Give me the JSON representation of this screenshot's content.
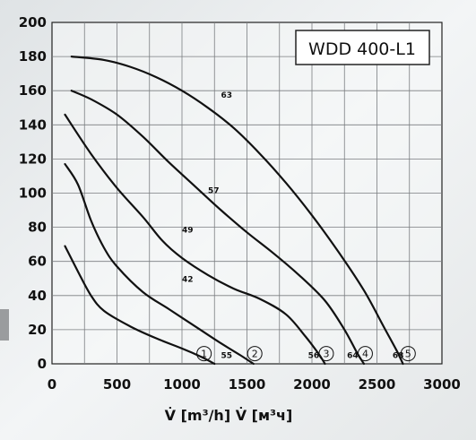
{
  "chart_data": {
    "type": "line",
    "title": "WDD 400-L1",
    "xlabel": "V̇ [m³/h]  V̇ [м³ч]",
    "ylabel": "",
    "xlim": [
      0,
      3000
    ],
    "ylim": [
      0,
      200
    ],
    "xticks": [
      "0",
      "500",
      "1000",
      "1500",
      "2000",
      "2500",
      "3000"
    ],
    "yticks": [
      "0",
      "20",
      "40",
      "60",
      "80",
      "100",
      "120",
      "140",
      "160",
      "180",
      "200"
    ],
    "grid": true,
    "series": [
      {
        "name": "1",
        "mid_label": "42",
        "end_label": "55",
        "points": [
          [
            100,
            69
          ],
          [
            200,
            54
          ],
          [
            300,
            40
          ],
          [
            400,
            31
          ],
          [
            600,
            22
          ],
          [
            800,
            15
          ],
          [
            1000,
            9
          ],
          [
            1150,
            4
          ],
          [
            1250,
            0
          ]
        ]
      },
      {
        "name": "2",
        "mid_label": "",
        "end_label": "",
        "points": [
          [
            100,
            117
          ],
          [
            200,
            105
          ],
          [
            300,
            84
          ],
          [
            400,
            68
          ],
          [
            500,
            57
          ],
          [
            700,
            42
          ],
          [
            900,
            32
          ],
          [
            1100,
            22
          ],
          [
            1300,
            12
          ],
          [
            1450,
            5
          ],
          [
            1550,
            0
          ]
        ]
      },
      {
        "name": "3",
        "mid_label": "49",
        "end_label": "56",
        "points": [
          [
            100,
            146
          ],
          [
            300,
            123
          ],
          [
            500,
            103
          ],
          [
            700,
            86
          ],
          [
            850,
            72
          ],
          [
            1000,
            62
          ],
          [
            1200,
            52
          ],
          [
            1400,
            44
          ],
          [
            1600,
            38
          ],
          [
            1800,
            29
          ],
          [
            1950,
            16
          ],
          [
            2050,
            6
          ],
          [
            2100,
            0
          ]
        ]
      },
      {
        "name": "4",
        "mid_label": "57",
        "end_label": "64",
        "points": [
          [
            150,
            160
          ],
          [
            300,
            155
          ],
          [
            500,
            146
          ],
          [
            700,
            133
          ],
          [
            900,
            118
          ],
          [
            1100,
            104
          ],
          [
            1300,
            90
          ],
          [
            1500,
            77
          ],
          [
            1700,
            65
          ],
          [
            1900,
            52
          ],
          [
            2100,
            37
          ],
          [
            2250,
            20
          ],
          [
            2350,
            6
          ],
          [
            2400,
            0
          ]
        ]
      },
      {
        "name": "5",
        "mid_label": "63",
        "end_label": "68",
        "points": [
          [
            150,
            180
          ],
          [
            400,
            178
          ],
          [
            600,
            174
          ],
          [
            800,
            168
          ],
          [
            1000,
            160
          ],
          [
            1200,
            150
          ],
          [
            1400,
            138
          ],
          [
            1600,
            123
          ],
          [
            1800,
            106
          ],
          [
            2000,
            87
          ],
          [
            2200,
            66
          ],
          [
            2400,
            43
          ],
          [
            2550,
            22
          ],
          [
            2650,
            8
          ],
          [
            2700,
            0
          ]
        ]
      }
    ]
  }
}
